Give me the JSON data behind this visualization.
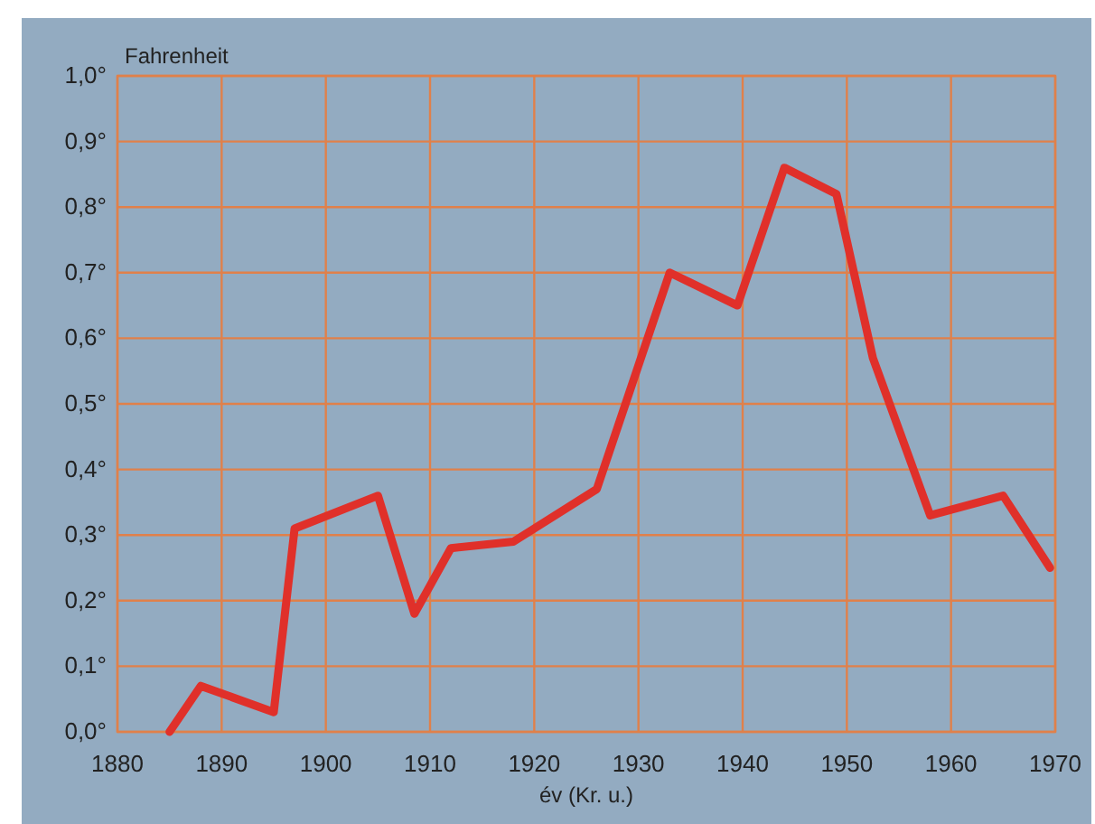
{
  "chart_data": {
    "type": "line",
    "ylabel": "Fahrenheit",
    "xlabel": "év (Kr. u.)",
    "x": [
      1885,
      1888,
      1895,
      1897,
      1905,
      1908.5,
      1912,
      1918,
      1926,
      1933,
      1939.5,
      1944,
      1949,
      1952.5,
      1958,
      1965,
      1969.5
    ],
    "series": [
      {
        "color": "#e0302a",
        "values": [
          0.0,
          0.07,
          0.03,
          0.31,
          0.36,
          0.18,
          0.28,
          0.29,
          0.37,
          0.7,
          0.65,
          0.86,
          0.82,
          0.57,
          0.33,
          0.36,
          0.25
        ]
      }
    ],
    "xlim": [
      1880,
      1970
    ],
    "xticks": [
      1880,
      1890,
      1900,
      1910,
      1920,
      1930,
      1940,
      1950,
      1960,
      1970
    ],
    "ylim": [
      0,
      1
    ],
    "yticks": [
      {
        "value": 0,
        "label": "0,0°"
      },
      {
        "value": 0.1,
        "label": "0,1°"
      },
      {
        "value": 0.2,
        "label": "0,2°"
      },
      {
        "value": 0.3,
        "label": "0,3°"
      },
      {
        "value": 0.4,
        "label": "0,4°"
      },
      {
        "value": 0.5,
        "label": "0,5°"
      },
      {
        "value": 0.6,
        "label": "0,6°"
      },
      {
        "value": 0.7,
        "label": "0,7°"
      },
      {
        "value": 0.8,
        "label": "0,8°"
      },
      {
        "value": 0.9,
        "label": "0,9°"
      },
      {
        "value": 1,
        "label": "1,0°"
      }
    ],
    "grid": true,
    "marker": "none",
    "line_style": "solid"
  }
}
